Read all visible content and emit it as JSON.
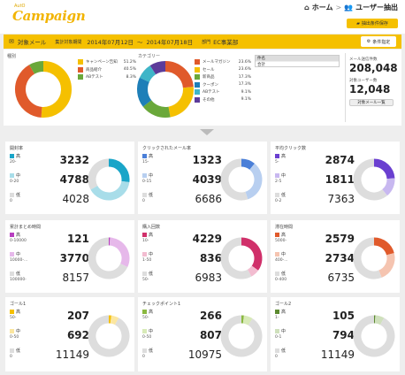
{
  "header": {
    "logo_small": "AutO",
    "logo": "Campaign",
    "nav_home": "ホーム",
    "nav_sep": ">",
    "nav_current": "ユーザー抽出",
    "save_conditions": "抽出条件保存"
  },
  "filterbar": {
    "title": "対象メール",
    "period_label": "集計対象期間",
    "date_from": "2014年07月12日",
    "date_arrow": "〜",
    "date_to": "2014年07月18日",
    "dept_label": "部門",
    "dept_value": "EC事業部",
    "cond_button": "条件指定"
  },
  "overview": {
    "chart1": {
      "title": "種別",
      "legend": [
        {
          "label": "キャンペーン告知",
          "pct": "51.2%",
          "color": "#f5c000"
        },
        {
          "label": "商品紹介",
          "pct": "40.5%",
          "color": "#e05a2b"
        },
        {
          "label": "ABテスト",
          "pct": "8.3%",
          "color": "#6aa83a"
        }
      ]
    },
    "chart2": {
      "title": "カテゴリー",
      "legend": [
        {
          "label": "メールマガジン",
          "pct": "23.6%",
          "color": "#e05a2b"
        },
        {
          "label": "セール",
          "pct": "23.6%",
          "color": "#f5c000"
        },
        {
          "label": "新商品",
          "pct": "17.3%",
          "color": "#6aa83a"
        },
        {
          "label": "クーポン",
          "pct": "17.3%",
          "color": "#1e7fb8"
        },
        {
          "label": "ABテスト",
          "pct": "9.1%",
          "color": "#3fb5c8"
        },
        {
          "label": "その他",
          "pct": "9.1%",
          "color": "#5c3b9a"
        }
      ]
    },
    "table": {
      "col1": "件名",
      "col2": "",
      "row1": "合計",
      "row2": ""
    },
    "stats": {
      "sent_label": "メール送信件数",
      "sent_value": "208,048",
      "users_label": "対象ユーザー数",
      "users_value": "12,048",
      "users_button": "対象メール一覧"
    }
  },
  "panels": [
    {
      "title": "開封率",
      "color": "#1aa5c8",
      "light": "#a8dde9",
      "tiers": [
        {
          "label": "高",
          "range": "20-",
          "value": "3232"
        },
        {
          "label": "中",
          "range": "0-20",
          "value": "4788"
        },
        {
          "label": "低",
          "range": "0",
          "value": "4028"
        }
      ],
      "shares": [
        0.27,
        0.4,
        0.33
      ]
    },
    {
      "title": "クリックされたメール率",
      "color": "#4a7fd8",
      "light": "#b8cff0",
      "tiers": [
        {
          "label": "高",
          "range": "15-",
          "value": "1323"
        },
        {
          "label": "中",
          "range": "0-15",
          "value": "4039"
        },
        {
          "label": "低",
          "range": "0",
          "value": "6686"
        }
      ],
      "shares": [
        0.11,
        0.34,
        0.55
      ]
    },
    {
      "title": "平均クリック数",
      "color": "#6a3fd0",
      "light": "#c8b8f0",
      "tiers": [
        {
          "label": "高",
          "range": "5-",
          "value": "2874"
        },
        {
          "label": "中",
          "range": "2-5",
          "value": "1811"
        },
        {
          "label": "低",
          "range": "0-2",
          "value": "7363"
        }
      ],
      "shares": [
        0.24,
        0.15,
        0.61
      ]
    },
    {
      "title": "累計まとめ時間",
      "color": "#b83fc0",
      "light": "#e6b8ea",
      "tiers": [
        {
          "label": "高",
          "range": "0-10000",
          "value": "121"
        },
        {
          "label": "中",
          "range": "10000-...",
          "value": "3770"
        },
        {
          "label": "低",
          "range": "100000-",
          "value": "8157"
        }
      ],
      "shares": [
        0.01,
        0.31,
        0.68
      ]
    },
    {
      "title": "購入回数",
      "color": "#d0306a",
      "light": "#f2bcd0",
      "tiers": [
        {
          "label": "高",
          "range": "10-",
          "value": "4229"
        },
        {
          "label": "中",
          "range": "1-50",
          "value": "836"
        },
        {
          "label": "低",
          "range": "50-",
          "value": "6983"
        }
      ],
      "shares": [
        0.35,
        0.07,
        0.58
      ]
    },
    {
      "title": "滞在時間",
      "color": "#e05a2b",
      "light": "#f5c4b0",
      "tiers": [
        {
          "label": "高",
          "range": "5000-",
          "value": "2579"
        },
        {
          "label": "中",
          "range": "400-...",
          "value": "2734"
        },
        {
          "label": "低",
          "range": "0-400",
          "value": "6735"
        }
      ],
      "shares": [
        0.21,
        0.23,
        0.56
      ]
    },
    {
      "title": "ゴール1",
      "color": "#f5c000",
      "light": "#fbe6a0",
      "tiers": [
        {
          "label": "高",
          "range": "50-",
          "value": "207"
        },
        {
          "label": "中",
          "range": "0-50",
          "value": "692"
        },
        {
          "label": "低",
          "range": "0",
          "value": "11149"
        }
      ],
      "shares": [
        0.02,
        0.06,
        0.92
      ]
    },
    {
      "title": "チェックポイント1",
      "color": "#8ab840",
      "light": "#d8eab8",
      "tiers": [
        {
          "label": "高",
          "range": "50-",
          "value": "266"
        },
        {
          "label": "中",
          "range": "0-50",
          "value": "807"
        },
        {
          "label": "低",
          "range": "0",
          "value": "10975"
        }
      ],
      "shares": [
        0.02,
        0.07,
        0.91
      ]
    },
    {
      "title": "ゴール2",
      "color": "#5c8a30",
      "light": "#cfe0bc",
      "tiers": [
        {
          "label": "高",
          "range": "1-",
          "value": "105"
        },
        {
          "label": "中",
          "range": "0-1",
          "value": "794"
        },
        {
          "label": "低",
          "range": "0",
          "value": "11149"
        }
      ],
      "shares": [
        0.01,
        0.07,
        0.92
      ]
    }
  ]
}
